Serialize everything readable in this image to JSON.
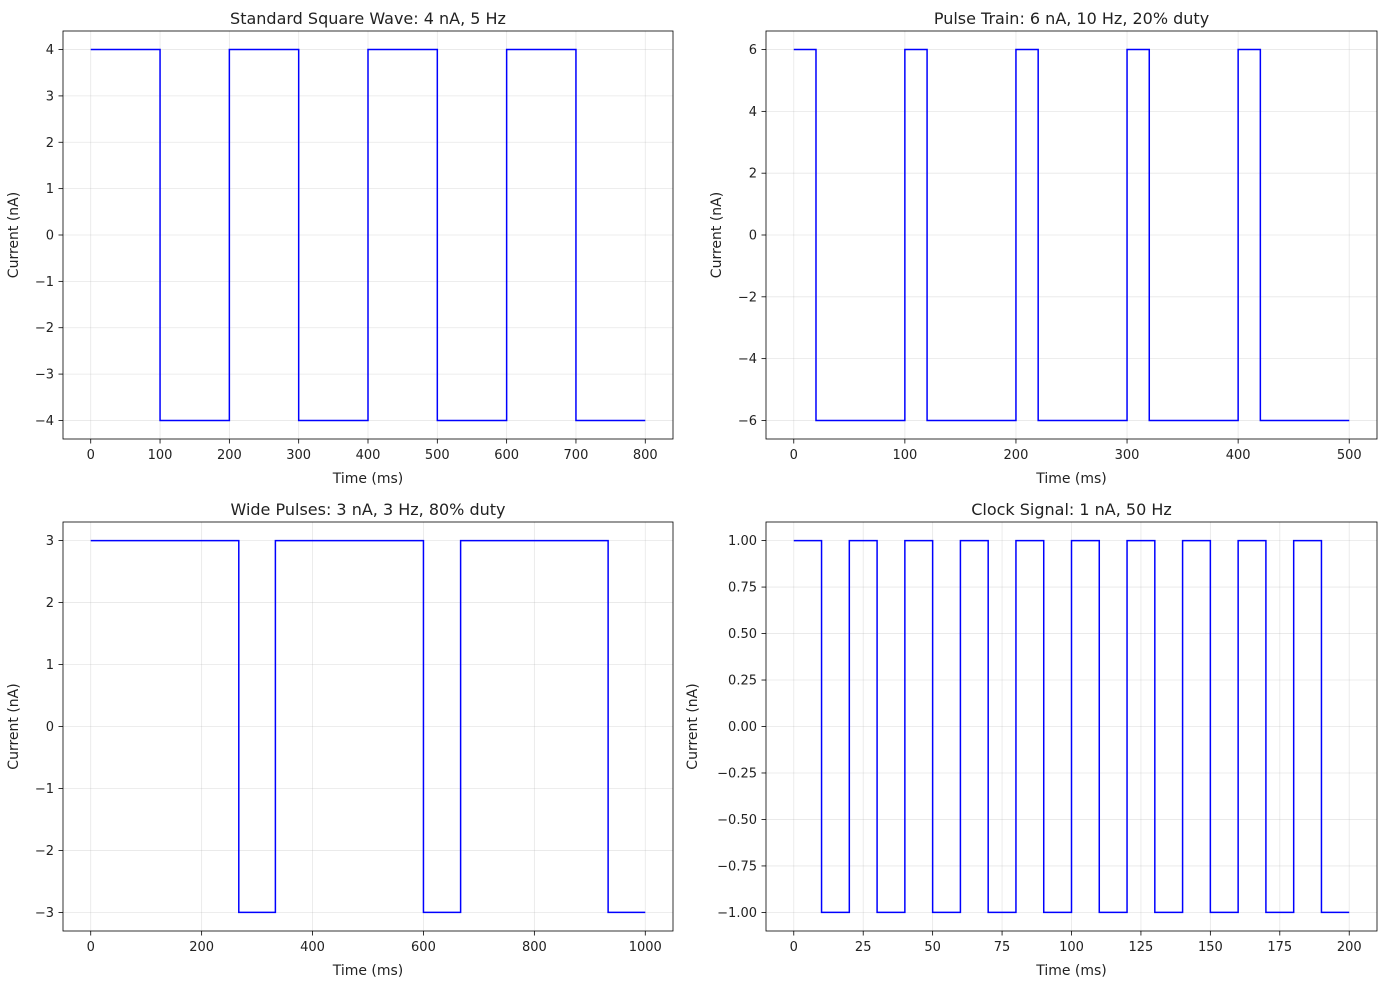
{
  "chart_data": [
    {
      "type": "line",
      "title": "Standard Square Wave: 4 nA, 5 Hz",
      "xlabel": "Time (ms)",
      "ylabel": "Current (nA)",
      "xlim": [
        -40,
        840
      ],
      "ylim": [
        -4.4,
        4.4
      ],
      "xticks": [
        0,
        100,
        200,
        300,
        400,
        500,
        600,
        700,
        800
      ],
      "yticks": [
        -4,
        -3,
        -2,
        -1,
        0,
        1,
        2,
        3,
        4
      ],
      "grid": true,
      "color": "#0000ff",
      "series": [
        {
          "x": [
            0,
            100,
            100,
            200,
            200,
            300,
            300,
            400,
            400,
            500,
            500,
            600,
            600,
            700,
            700,
            800
          ],
          "y": [
            4,
            4,
            -4,
            -4,
            4,
            4,
            -4,
            -4,
            4,
            4,
            -4,
            -4,
            4,
            4,
            -4,
            -4
          ]
        }
      ]
    },
    {
      "type": "line",
      "title": "Pulse Train: 6 nA, 10 Hz, 20% duty",
      "xlabel": "Time (ms)",
      "ylabel": "Current (nA)",
      "xlim": [
        -25,
        525
      ],
      "ylim": [
        -6.6,
        6.6
      ],
      "xticks": [
        0,
        100,
        200,
        300,
        400,
        500
      ],
      "yticks": [
        -6,
        -4,
        -2,
        0,
        2,
        4,
        6
      ],
      "grid": true,
      "color": "#0000ff",
      "series": [
        {
          "x": [
            0,
            20,
            20,
            100,
            100,
            120,
            120,
            200,
            200,
            220,
            220,
            300,
            300,
            320,
            320,
            400,
            400,
            420,
            420,
            500
          ],
          "y": [
            6,
            6,
            -6,
            -6,
            6,
            6,
            -6,
            -6,
            6,
            6,
            -6,
            -6,
            6,
            6,
            -6,
            -6,
            6,
            6,
            -6,
            -6
          ]
        }
      ]
    },
    {
      "type": "line",
      "title": "Wide Pulses: 3 nA, 3 Hz, 80% duty",
      "xlabel": "Time (ms)",
      "ylabel": "Current (nA)",
      "xlim": [
        -50,
        1050
      ],
      "ylim": [
        -3.3,
        3.3
      ],
      "xticks": [
        0,
        200,
        400,
        600,
        800,
        1000
      ],
      "yticks": [
        -3,
        -2,
        -1,
        0,
        1,
        2,
        3
      ],
      "grid": true,
      "color": "#0000ff",
      "series": [
        {
          "x": [
            0,
            267,
            267,
            333,
            333,
            600,
            600,
            667,
            667,
            933,
            933,
            1000
          ],
          "y": [
            3,
            3,
            -3,
            -3,
            3,
            3,
            -3,
            -3,
            3,
            3,
            -3,
            -3
          ]
        }
      ]
    },
    {
      "type": "line",
      "title": "Clock Signal: 1 nA, 50 Hz",
      "xlabel": "Time (ms)",
      "ylabel": "Current (nA)",
      "xlim": [
        -10,
        210
      ],
      "ylim": [
        -1.1,
        1.1
      ],
      "xticks": [
        0,
        25,
        50,
        75,
        100,
        125,
        150,
        175,
        200
      ],
      "yticks": [
        -1.0,
        -0.75,
        -0.5,
        -0.25,
        0.0,
        0.25,
        0.5,
        0.75,
        1.0
      ],
      "ytick_labels": [
        "−1.00",
        "−0.75",
        "−0.50",
        "−0.25",
        "0.00",
        "0.25",
        "0.50",
        "0.75",
        "1.00"
      ],
      "grid": true,
      "color": "#0000ff",
      "series": [
        {
          "x": [
            0,
            10,
            10,
            20,
            20,
            30,
            30,
            40,
            40,
            50,
            50,
            60,
            60,
            70,
            70,
            80,
            80,
            90,
            90,
            100,
            100,
            110,
            110,
            120,
            120,
            130,
            130,
            140,
            140,
            150,
            150,
            160,
            160,
            170,
            170,
            180,
            180,
            190,
            190,
            200
          ],
          "y": [
            1,
            1,
            -1,
            -1,
            1,
            1,
            -1,
            -1,
            1,
            1,
            -1,
            -1,
            1,
            1,
            -1,
            -1,
            1,
            1,
            -1,
            -1,
            1,
            1,
            -1,
            -1,
            1,
            1,
            -1,
            -1,
            1,
            1,
            -1,
            -1,
            1,
            1,
            -1,
            -1,
            1,
            1,
            -1,
            -1
          ]
        }
      ]
    }
  ]
}
